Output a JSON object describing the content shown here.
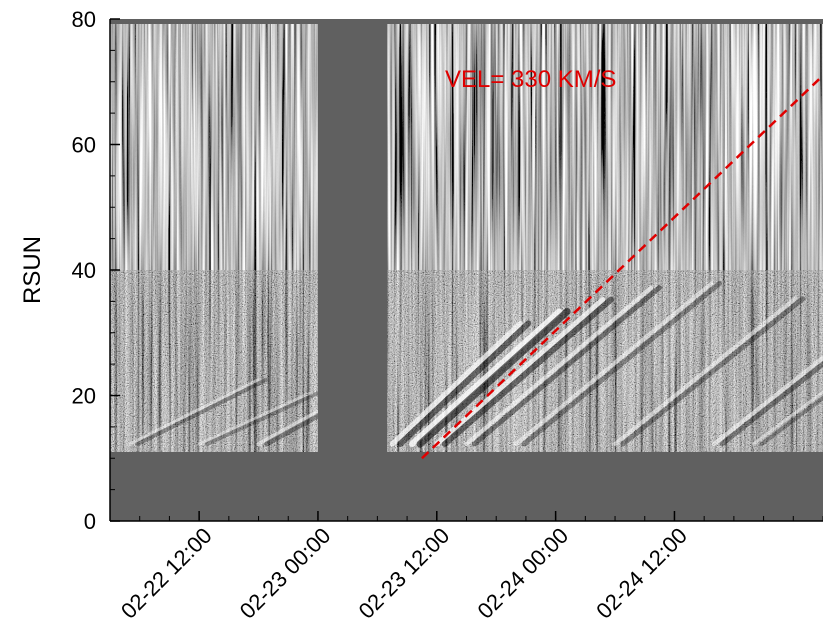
{
  "chart_data": {
    "type": "heatmap",
    "title": "",
    "xlabel": "",
    "ylabel": "RSUN",
    "ylim": [
      0,
      80
    ],
    "x_domain": [
      "2024-02-22T03:00",
      "2024-02-25T03:00"
    ],
    "yticks": [
      0,
      20,
      40,
      60,
      80
    ],
    "xticks": [
      {
        "t": "2024-02-22T12:00",
        "label": "02-22 12:00"
      },
      {
        "t": "2024-02-23T00:00",
        "label": "02-23 00:00"
      },
      {
        "t": "2024-02-23T12:00",
        "label": "02-23 12:00"
      },
      {
        "t": "2024-02-24T00:00",
        "label": "02-24 00:00"
      },
      {
        "t": "2024-02-24T12:00",
        "label": "02-24 12:00"
      }
    ],
    "data_gap": {
      "start": "2024-02-23T00:00",
      "end": "2024-02-23T07:00"
    },
    "occulter_rsun": 11,
    "fov_top_rsun": 76,
    "fit_line": {
      "x": [
        "2024-02-23T10:30",
        "2024-02-25T03:00"
      ],
      "y": [
        10,
        71
      ],
      "style": "dashed",
      "color": "#e00000"
    },
    "annotation": "VEL= 330 KM/S",
    "grid": false,
    "colors": {
      "background": "#606060",
      "fit_line": "#e00000"
    }
  }
}
